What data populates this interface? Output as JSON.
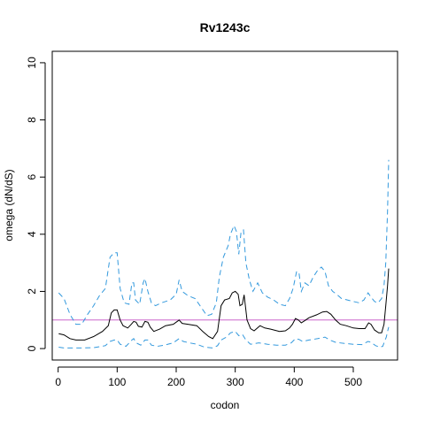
{
  "chart_data": {
    "type": "line",
    "title": "Rv1243c",
    "xlabel": "codon",
    "ylabel": "omega (dN/dS)",
    "xlim": [
      -10,
      575
    ],
    "ylim": [
      -0.4,
      10.4
    ],
    "x_ticks": [
      0,
      100,
      200,
      300,
      400,
      500
    ],
    "x_tick_labels": [
      "0",
      "100",
      "200",
      "300",
      "400",
      "500"
    ],
    "y_ticks": [
      0,
      2,
      4,
      6,
      8,
      10
    ],
    "y_tick_labels": [
      "0",
      "2",
      "4",
      "6",
      "8",
      "10"
    ],
    "grid": false,
    "reference_line": {
      "y": 1,
      "color": "#cc66cc"
    },
    "series": [
      {
        "role": "median",
        "color": "#000000",
        "dash": "solid",
        "points": [
          [
            1,
            0.52
          ],
          [
            10,
            0.48
          ],
          [
            20,
            0.35
          ],
          [
            30,
            0.3
          ],
          [
            45,
            0.3
          ],
          [
            60,
            0.42
          ],
          [
            75,
            0.6
          ],
          [
            85,
            0.8
          ],
          [
            90,
            1.25
          ],
          [
            95,
            1.35
          ],
          [
            100,
            1.35
          ],
          [
            105,
            1.0
          ],
          [
            110,
            0.8
          ],
          [
            118,
            0.72
          ],
          [
            124,
            0.85
          ],
          [
            128,
            0.95
          ],
          [
            132,
            0.92
          ],
          [
            136,
            0.78
          ],
          [
            142,
            0.75
          ],
          [
            147,
            0.95
          ],
          [
            152,
            0.92
          ],
          [
            156,
            0.75
          ],
          [
            162,
            0.6
          ],
          [
            172,
            0.68
          ],
          [
            182,
            0.8
          ],
          [
            195,
            0.85
          ],
          [
            205,
            1.0
          ],
          [
            210,
            0.88
          ],
          [
            220,
            0.85
          ],
          [
            235,
            0.8
          ],
          [
            245,
            0.6
          ],
          [
            255,
            0.42
          ],
          [
            262,
            0.35
          ],
          [
            270,
            0.6
          ],
          [
            276,
            1.5
          ],
          [
            282,
            1.7
          ],
          [
            290,
            1.75
          ],
          [
            295,
            1.95
          ],
          [
            300,
            2.0
          ],
          [
            305,
            1.9
          ],
          [
            308,
            1.5
          ],
          [
            312,
            1.55
          ],
          [
            315,
            1.88
          ],
          [
            320,
            1.0
          ],
          [
            326,
            0.7
          ],
          [
            332,
            0.62
          ],
          [
            342,
            0.8
          ],
          [
            350,
            0.72
          ],
          [
            360,
            0.68
          ],
          [
            375,
            0.6
          ],
          [
            385,
            0.62
          ],
          [
            392,
            0.72
          ],
          [
            397,
            0.85
          ],
          [
            402,
            1.05
          ],
          [
            407,
            1.0
          ],
          [
            412,
            0.9
          ],
          [
            418,
            0.98
          ],
          [
            425,
            1.08
          ],
          [
            438,
            1.18
          ],
          [
            448,
            1.28
          ],
          [
            455,
            1.3
          ],
          [
            462,
            1.2
          ],
          [
            470,
            1.0
          ],
          [
            478,
            0.85
          ],
          [
            488,
            0.8
          ],
          [
            500,
            0.72
          ],
          [
            510,
            0.7
          ],
          [
            520,
            0.7
          ],
          [
            526,
            0.9
          ],
          [
            530,
            0.85
          ],
          [
            536,
            0.65
          ],
          [
            543,
            0.55
          ],
          [
            548,
            0.55
          ],
          [
            552,
            0.85
          ],
          [
            555,
            1.5
          ],
          [
            558,
            2.2
          ],
          [
            560,
            2.8
          ]
        ]
      },
      {
        "role": "upper",
        "color": "#3399dd",
        "dash": "6,4",
        "points": [
          [
            1,
            1.95
          ],
          [
            10,
            1.75
          ],
          [
            20,
            1.2
          ],
          [
            30,
            0.85
          ],
          [
            40,
            0.85
          ],
          [
            50,
            1.2
          ],
          [
            60,
            1.5
          ],
          [
            70,
            1.85
          ],
          [
            80,
            2.1
          ],
          [
            88,
            3.2
          ],
          [
            95,
            3.35
          ],
          [
            100,
            3.35
          ],
          [
            105,
            2.1
          ],
          [
            112,
            1.6
          ],
          [
            120,
            1.55
          ],
          [
            125,
            2.3
          ],
          [
            128,
            2.3
          ],
          [
            131,
            1.7
          ],
          [
            138,
            1.55
          ],
          [
            144,
            2.3
          ],
          [
            147,
            2.45
          ],
          [
            152,
            2.0
          ],
          [
            158,
            1.6
          ],
          [
            165,
            1.5
          ],
          [
            175,
            1.6
          ],
          [
            190,
            1.7
          ],
          [
            200,
            1.9
          ],
          [
            205,
            2.4
          ],
          [
            210,
            2.0
          ],
          [
            220,
            1.85
          ],
          [
            232,
            1.75
          ],
          [
            242,
            1.45
          ],
          [
            252,
            1.15
          ],
          [
            260,
            1.2
          ],
          [
            268,
            1.6
          ],
          [
            273,
            2.5
          ],
          [
            280,
            3.2
          ],
          [
            288,
            3.6
          ],
          [
            292,
            4.0
          ],
          [
            298,
            4.3
          ],
          [
            302,
            4.1
          ],
          [
            306,
            3.3
          ],
          [
            310,
            4.1
          ],
          [
            314,
            4.15
          ],
          [
            318,
            3.0
          ],
          [
            324,
            2.4
          ],
          [
            330,
            2.0
          ],
          [
            338,
            2.3
          ],
          [
            346,
            1.95
          ],
          [
            355,
            1.8
          ],
          [
            365,
            1.7
          ],
          [
            375,
            1.55
          ],
          [
            385,
            1.5
          ],
          [
            392,
            1.75
          ],
          [
            398,
            2.1
          ],
          [
            404,
            2.7
          ],
          [
            408,
            2.65
          ],
          [
            412,
            2.0
          ],
          [
            418,
            2.3
          ],
          [
            425,
            2.2
          ],
          [
            432,
            2.5
          ],
          [
            440,
            2.75
          ],
          [
            446,
            2.85
          ],
          [
            452,
            2.7
          ],
          [
            458,
            2.2
          ],
          [
            465,
            2.0
          ],
          [
            472,
            1.9
          ],
          [
            480,
            1.75
          ],
          [
            490,
            1.7
          ],
          [
            500,
            1.65
          ],
          [
            510,
            1.6
          ],
          [
            518,
            1.7
          ],
          [
            525,
            1.95
          ],
          [
            530,
            1.8
          ],
          [
            536,
            1.65
          ],
          [
            542,
            1.6
          ],
          [
            548,
            1.75
          ],
          [
            552,
            2.2
          ],
          [
            555,
            3.0
          ],
          [
            558,
            4.8
          ],
          [
            560,
            6.6
          ]
        ]
      },
      {
        "role": "lower",
        "color": "#3399dd",
        "dash": "6,4",
        "points": [
          [
            1,
            0.05
          ],
          [
            10,
            0.02
          ],
          [
            20,
            0.02
          ],
          [
            40,
            0.02
          ],
          [
            60,
            0.03
          ],
          [
            80,
            0.1
          ],
          [
            88,
            0.25
          ],
          [
            95,
            0.3
          ],
          [
            100,
            0.3
          ],
          [
            105,
            0.15
          ],
          [
            115,
            0.08
          ],
          [
            125,
            0.3
          ],
          [
            128,
            0.35
          ],
          [
            132,
            0.2
          ],
          [
            140,
            0.12
          ],
          [
            147,
            0.3
          ],
          [
            152,
            0.3
          ],
          [
            158,
            0.12
          ],
          [
            168,
            0.08
          ],
          [
            180,
            0.12
          ],
          [
            195,
            0.2
          ],
          [
            205,
            0.35
          ],
          [
            212,
            0.25
          ],
          [
            222,
            0.2
          ],
          [
            235,
            0.15
          ],
          [
            248,
            0.05
          ],
          [
            262,
            0.02
          ],
          [
            270,
            0.1
          ],
          [
            276,
            0.3
          ],
          [
            285,
            0.4
          ],
          [
            292,
            0.55
          ],
          [
            300,
            0.6
          ],
          [
            306,
            0.45
          ],
          [
            312,
            0.5
          ],
          [
            318,
            0.3
          ],
          [
            326,
            0.15
          ],
          [
            340,
            0.2
          ],
          [
            355,
            0.15
          ],
          [
            370,
            0.12
          ],
          [
            385,
            0.12
          ],
          [
            395,
            0.2
          ],
          [
            402,
            0.35
          ],
          [
            408,
            0.32
          ],
          [
            414,
            0.25
          ],
          [
            425,
            0.3
          ],
          [
            440,
            0.35
          ],
          [
            452,
            0.4
          ],
          [
            460,
            0.3
          ],
          [
            470,
            0.22
          ],
          [
            485,
            0.18
          ],
          [
            500,
            0.15
          ],
          [
            515,
            0.14
          ],
          [
            525,
            0.25
          ],
          [
            530,
            0.22
          ],
          [
            538,
            0.1
          ],
          [
            545,
            0.05
          ],
          [
            550,
            0.08
          ],
          [
            553,
            0.25
          ],
          [
            556,
            0.4
          ],
          [
            558,
            0.6
          ],
          [
            560,
            0.75
          ]
        ]
      }
    ]
  }
}
